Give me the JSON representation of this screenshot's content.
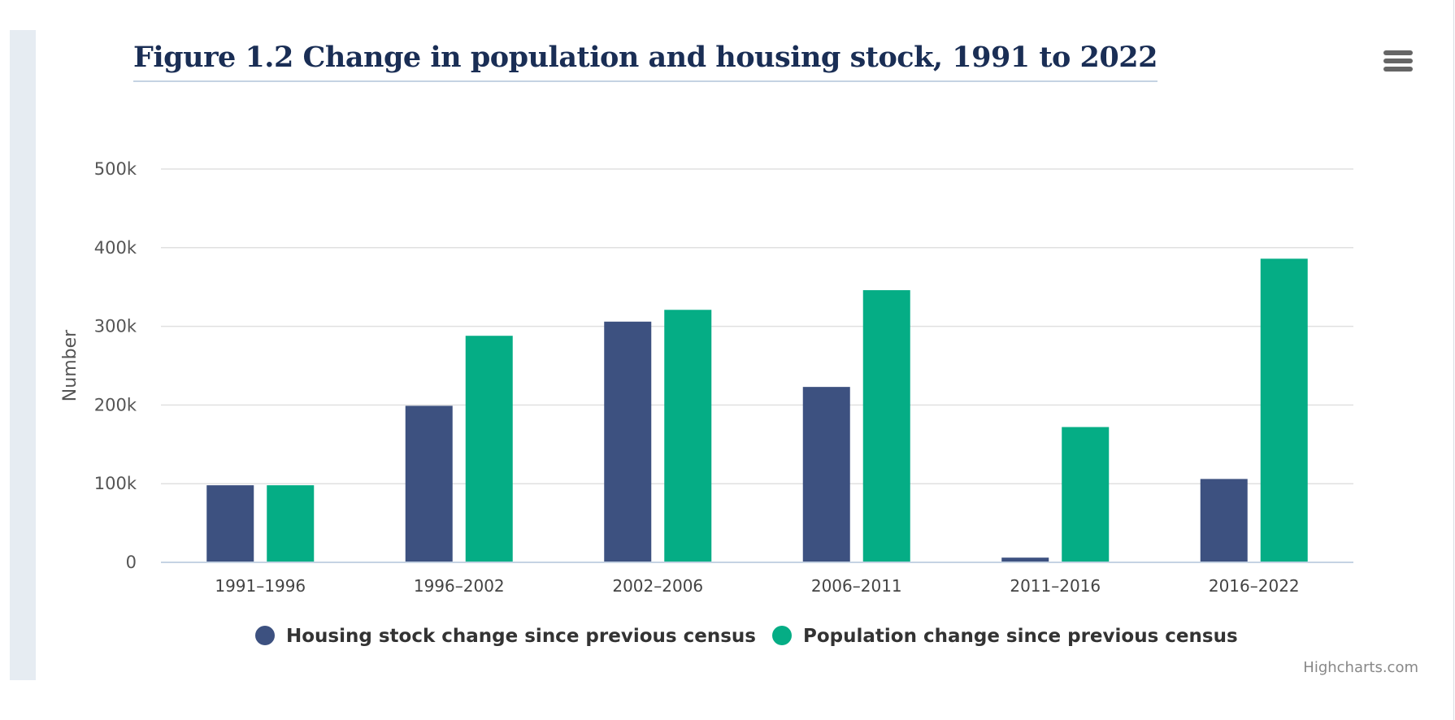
{
  "title": "Figure 1.2 Change in population and housing stock, 1991 to 2022",
  "credits": "Highcharts.com",
  "menu_icon": "hamburger-menu-icon",
  "colors": {
    "housing": "#3d5180",
    "population": "#05ad85",
    "grid": "#e0e0e0",
    "axis": "#c5d3e3",
    "title": "#1a2e55"
  },
  "chart_data": {
    "type": "bar",
    "title": "Figure 1.2 Change in population and housing stock, 1991 to 2022",
    "xlabel": "",
    "ylabel": "Number",
    "ylim": [
      0,
      500000
    ],
    "yticks": [
      0,
      100000,
      200000,
      300000,
      400000,
      500000
    ],
    "ytick_labels": [
      "0",
      "100k",
      "200k",
      "300k",
      "400k",
      "500k"
    ],
    "grid": true,
    "legend": "bottom-center",
    "categories": [
      "1991–1996",
      "1996–2002",
      "2002–2006",
      "2006–2011",
      "2011–2016",
      "2016–2022"
    ],
    "series": [
      {
        "name": "Housing stock change since previous census",
        "color": "#3d5180",
        "values": [
          98000,
          199000,
          306000,
          223000,
          6000,
          106000
        ]
      },
      {
        "name": "Population change since previous census",
        "color": "#05ad85",
        "values": [
          98000,
          288000,
          321000,
          346000,
          172000,
          386000
        ]
      }
    ]
  }
}
